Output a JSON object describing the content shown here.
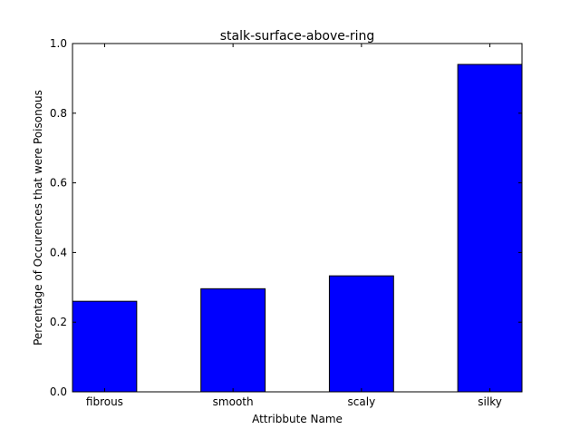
{
  "chart_data": {
    "type": "bar",
    "title": "stalk-surface-above-ring",
    "xlabel": "Attribbute Name",
    "ylabel": "Percentage of Occurences that were Poisonous",
    "categories": [
      "fibrous",
      "smooth",
      "scaly",
      "silky"
    ],
    "values": [
      0.26,
      0.296,
      0.333,
      0.94
    ],
    "ylim": [
      0.0,
      1.0
    ],
    "yticks": [
      "0.0",
      "0.2",
      "0.4",
      "0.6",
      "0.8",
      "1.0"
    ],
    "bar_color": "#0000ff",
    "edge_color": "#000000",
    "grid": false,
    "legend": "none"
  }
}
